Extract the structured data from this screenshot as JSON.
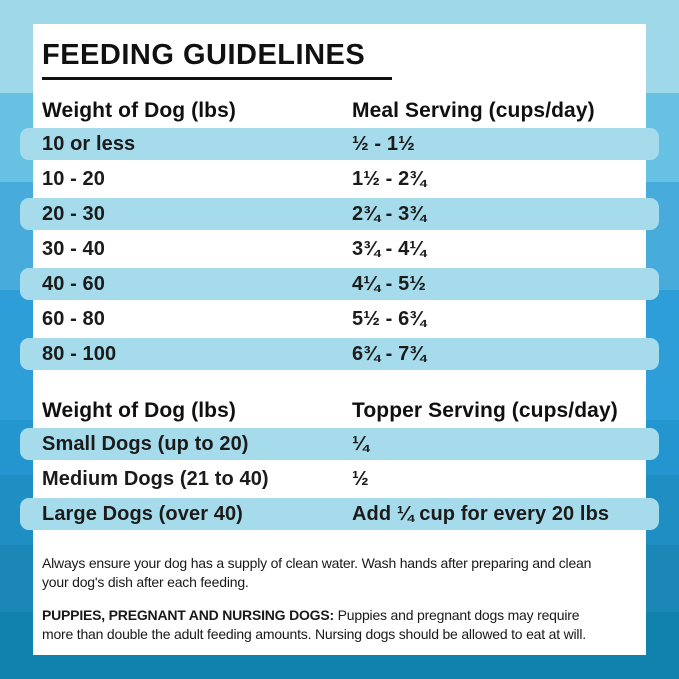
{
  "title": "FEEDING GUIDELINES",
  "meal_table": {
    "headers": [
      "Weight of Dog (lbs)",
      "Meal Serving (cups/day)"
    ],
    "rows": [
      [
        "10 or less",
        "½ - 1½"
      ],
      [
        "10 - 20",
        "1½ - 2¾"
      ],
      [
        "20 - 30",
        "2¾ - 3¾"
      ],
      [
        "30 - 40",
        "3¾ - 4¼"
      ],
      [
        "40 - 60",
        "4¼ - 5½"
      ],
      [
        "60 - 80",
        "5½ - 6¾"
      ],
      [
        "80 - 100",
        "6¾ - 7¾"
      ]
    ]
  },
  "topper_table": {
    "headers": [
      "Weight of Dog (lbs)",
      "Topper Serving (cups/day)"
    ],
    "rows": [
      [
        "Small Dogs (up to 20)",
        "¼"
      ],
      [
        "Medium Dogs (21 to 40)",
        "½"
      ],
      [
        "Large Dogs (over 40)",
        "Add ¼ cup for every 20 lbs"
      ]
    ]
  },
  "notes": {
    "water_note": "Always ensure your dog has a supply of clean water. Wash hands after preparing and clean\nyour dog's dish after each feeding.",
    "puppies_label": "PUPPIES, PREGNANT AND NURSING DOGS:",
    "puppies_note": " Puppies and pregnant dogs may require\nmore than double the adult feeding amounts. Nursing dogs should be allowed to eat at will."
  },
  "colors": {
    "row_highlight": "#a5dbea",
    "card_background": "#ffffff",
    "text": "#1b1b1b",
    "title_underline": "#111111",
    "background_bands": [
      "#9ed8e9",
      "#66c1e2",
      "#47abdb",
      "#2d9ed8",
      "#2496cf",
      "#1f8ec3",
      "#1a87b7",
      "#1181ae"
    ]
  }
}
